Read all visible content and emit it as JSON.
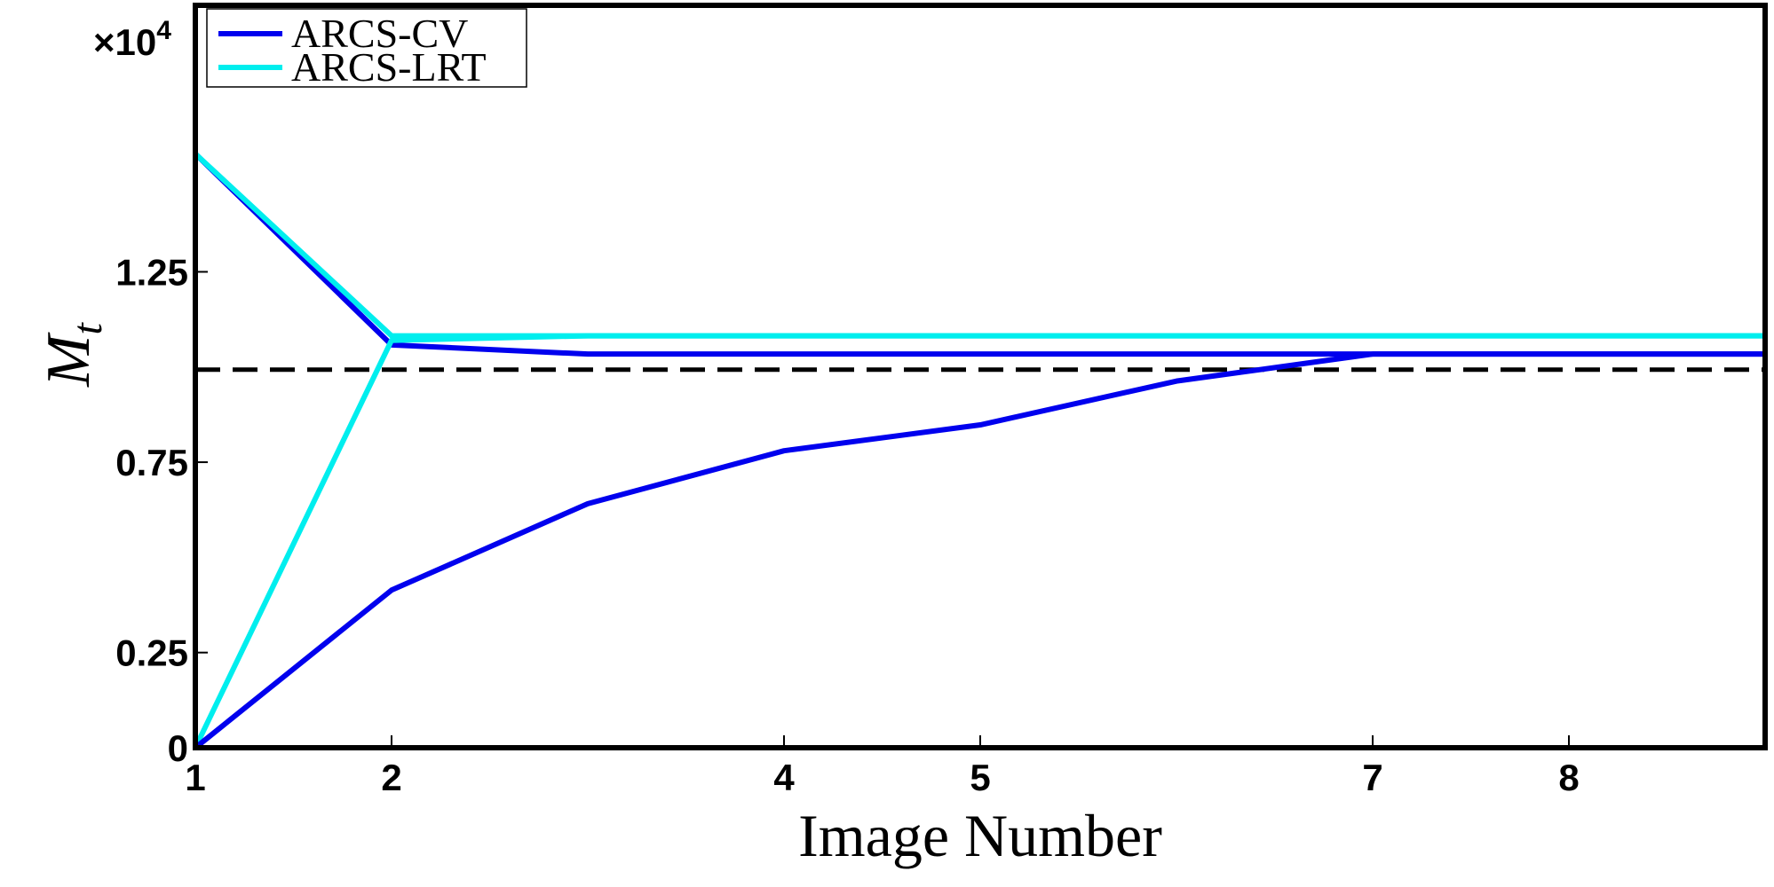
{
  "chart_data": {
    "type": "line",
    "x_label": "Image Number",
    "y_label": "M",
    "y_label_subscript": "t",
    "y_multiplier": {
      "text": "×10",
      "superscript": "4"
    },
    "x": [
      1,
      2,
      3,
      4,
      5,
      6,
      7,
      8,
      9
    ],
    "series": [
      {
        "name": "ARCS-CV",
        "color": "#0000ee",
        "values": [
          1.56,
          1.058,
          1.034,
          1.034,
          1.034,
          1.034,
          1.034,
          1.034,
          1.034
        ]
      },
      {
        "name": "ARCS-LRT",
        "color": "#00eeee",
        "values": [
          1.56,
          1.082,
          1.082,
          1.082,
          1.082,
          1.082,
          1.082,
          1.082,
          1.082
        ]
      },
      {
        "color": "#00eeee",
        "values": [
          0,
          1.07,
          1.082,
          1.082,
          1.082,
          1.082,
          1.082,
          1.082,
          1.082
        ]
      },
      {
        "color": "#0000ee",
        "values": [
          0,
          0.414,
          0.641,
          0.78,
          0.848,
          0.963,
          1.034,
          1.034,
          1.034
        ]
      }
    ],
    "reference_line": {
      "value": 0.993,
      "color": "#000000",
      "dashed": true
    },
    "xlim": [
      1,
      9
    ],
    "ylim": [
      0,
      1.95
    ],
    "xticks": [
      1,
      2,
      4,
      5,
      7,
      8
    ],
    "yticks": [
      0,
      0.25,
      0.75,
      1.25
    ],
    "grid": false,
    "legend": "upper left"
  }
}
